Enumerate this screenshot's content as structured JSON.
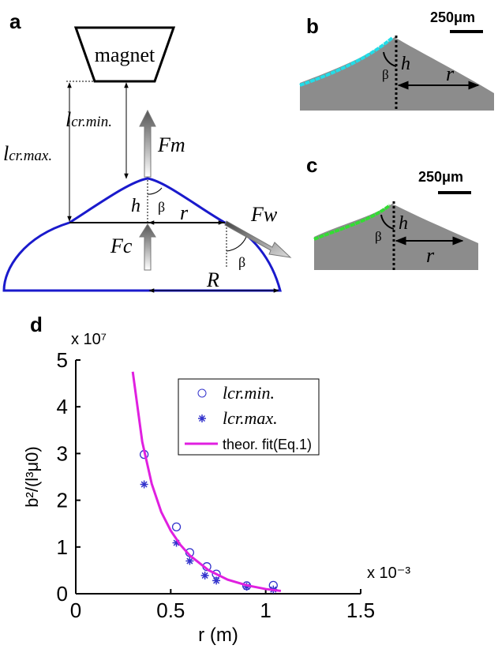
{
  "panel_a": {
    "label": "a",
    "magnet": "magnet",
    "l_min": {
      "main": "l",
      "sub": "cr.min."
    },
    "l_max": {
      "main": "l",
      "sub": "cr.max."
    },
    "fm": "Fm",
    "fc": "Fc",
    "fw": "Fw",
    "h": "h",
    "beta": "β",
    "beta2": "β",
    "r": "r",
    "R": "R"
  },
  "panel_b": {
    "label": "b",
    "scale": "250μm",
    "beta": "β",
    "h": "h",
    "r": "r"
  },
  "panel_c": {
    "label": "c",
    "scale": "250μm",
    "beta": "β",
    "h": "h",
    "r": "r"
  },
  "panel_d": {
    "label": "d"
  },
  "chart_data": {
    "type": "scatter",
    "xlabel": "r (m)",
    "ylabel": "b²/(l³μ0)",
    "x_multiplier": "x 10⁻³",
    "y_multiplier": "x 10⁷",
    "xlim": [
      0,
      1.5
    ],
    "ylim": [
      0,
      5
    ],
    "xticks": [
      0,
      0.5,
      1,
      1.5
    ],
    "yticks": [
      0,
      1,
      2,
      3,
      4,
      5
    ],
    "series": [
      {
        "name": "lcr.min.",
        "marker": "circle",
        "color": "#3333cc",
        "x": [
          0.36,
          0.53,
          0.6,
          0.69,
          0.74,
          0.9,
          1.04
        ],
        "values": [
          2.98,
          1.43,
          0.88,
          0.58,
          0.42,
          0.17,
          0.18
        ]
      },
      {
        "name": "lcr.max.",
        "marker": "star",
        "color": "#3333cc",
        "x": [
          0.36,
          0.53,
          0.6,
          0.68,
          0.74,
          0.9,
          1.04
        ],
        "values": [
          2.34,
          1.09,
          0.7,
          0.39,
          0.28,
          0.15,
          0.09
        ]
      },
      {
        "name": "theor. fit(Eq.1)",
        "marker": "line",
        "color": "#e020e0",
        "x": [
          0.3,
          0.35,
          0.4,
          0.45,
          0.5,
          0.55,
          0.6,
          0.7,
          0.8,
          0.9,
          1.0,
          1.08
        ],
        "values": [
          4.75,
          3.25,
          2.35,
          1.75,
          1.35,
          1.05,
          0.82,
          0.5,
          0.3,
          0.18,
          0.1,
          0.06
        ]
      }
    ]
  }
}
